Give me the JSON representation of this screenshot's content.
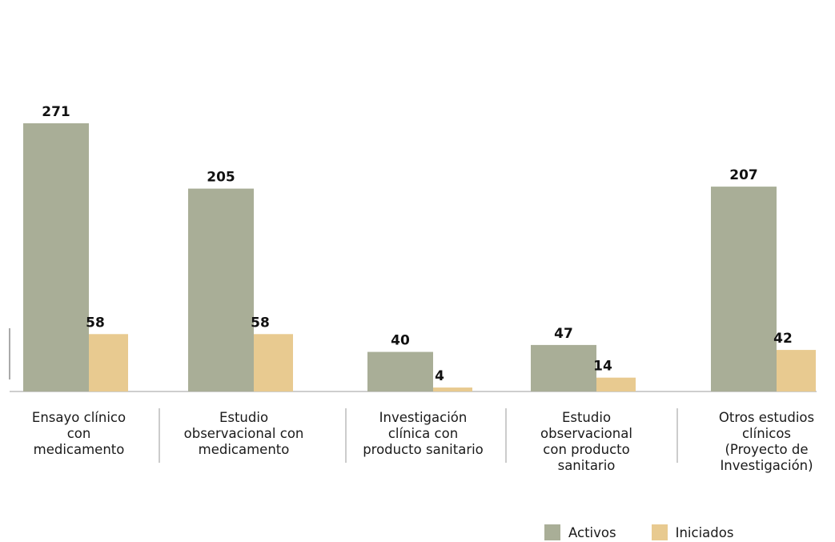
{
  "chart_data": {
    "type": "bar",
    "categories": [
      "Ensayo clínico con medicamento",
      "Estudio observacional con medicamento",
      "Investigación clínica con producto sanitario",
      "Estudio observacional con producto sanitario",
      "Otros estudios clínicos (Proyecto de Investigación)"
    ],
    "category_lines": [
      "Ensayo clínico\ncon\nmedicamento",
      "Estudio\nobservacional con\nmedicamento",
      "Investigación\nclínica con\nproducto sanitario",
      "Estudio\nobservacional\ncon producto\nsanitario",
      "Otros estudios\nclínicos\n(Proyecto de\nInvestigación)"
    ],
    "series": [
      {
        "name": "Activos",
        "color": "#a9ae97",
        "values": [
          271,
          205,
          40,
          47,
          207
        ]
      },
      {
        "name": "Iniciados",
        "color": "#e8ca90",
        "values": [
          58,
          58,
          4,
          14,
          42
        ]
      }
    ],
    "ylim": [
      0,
      271
    ],
    "grid": false,
    "legend_position": "bottom-right",
    "data_labels": true
  }
}
